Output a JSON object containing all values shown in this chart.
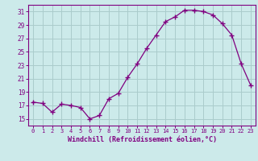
{
  "x": [
    0,
    1,
    2,
    3,
    4,
    5,
    6,
    7,
    8,
    9,
    10,
    11,
    12,
    13,
    14,
    15,
    16,
    17,
    18,
    19,
    20,
    21,
    22,
    23
  ],
  "y": [
    17.5,
    17.3,
    16.0,
    17.2,
    17.0,
    16.7,
    15.0,
    15.5,
    18.0,
    18.8,
    21.2,
    23.2,
    25.5,
    27.5,
    29.5,
    30.2,
    31.2,
    31.2,
    31.0,
    30.5,
    29.2,
    27.5,
    23.2,
    20.0
  ],
  "line_color": "#800080",
  "marker": "+",
  "marker_size": 4,
  "bg_color": "#cceaea",
  "grid_color": "#aacccc",
  "xlabel": "Windchill (Refroidissement éolien,°C)",
  "xlabel_color": "#800080",
  "tick_color": "#800080",
  "ylabel_ticks": [
    15,
    17,
    19,
    21,
    23,
    25,
    27,
    29,
    31
  ],
  "xtick_labels": [
    "0",
    "1",
    "2",
    "3",
    "4",
    "5",
    "6",
    "7",
    "8",
    "9",
    "10",
    "11",
    "12",
    "13",
    "14",
    "15",
    "16",
    "17",
    "18",
    "19",
    "20",
    "21",
    "22",
    "23"
  ],
  "xlim": [
    -0.5,
    23.5
  ],
  "ylim": [
    14.0,
    32.0
  ]
}
